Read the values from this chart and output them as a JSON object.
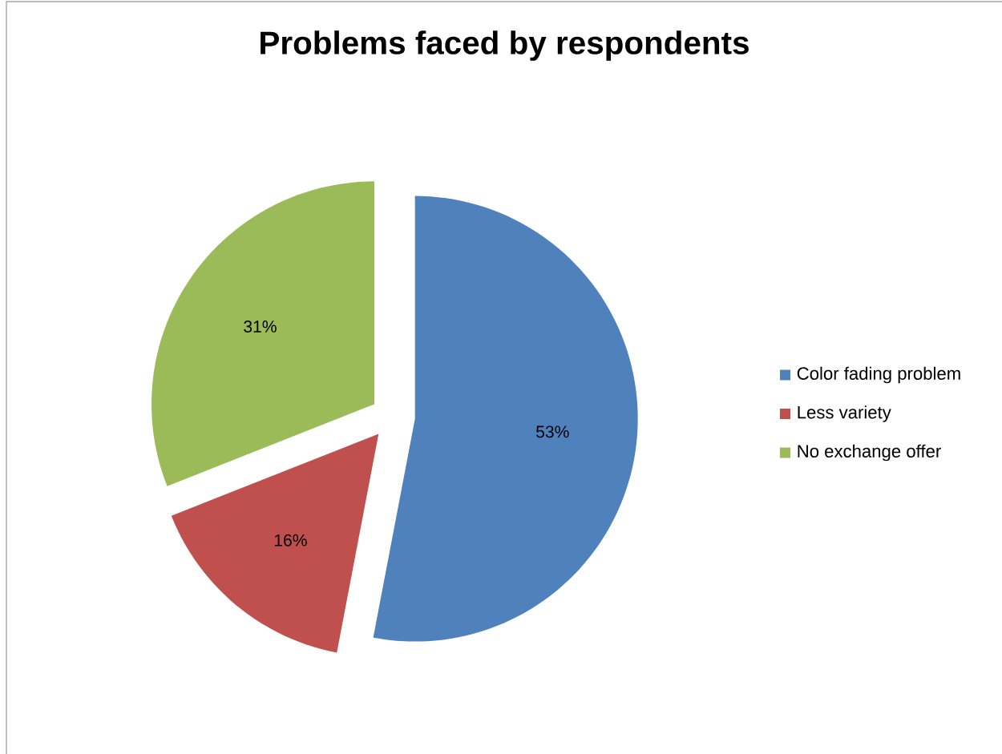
{
  "chart_data": {
    "type": "pie",
    "title": "Problems faced by respondents",
    "categories": [
      "Color fading problem",
      "Less variety",
      "No exchange offer"
    ],
    "values": [
      53,
      16,
      31
    ],
    "colors": [
      "#4f81bd",
      "#c0504d",
      "#9bbb59"
    ],
    "value_labels": [
      "53%",
      "16%",
      "31%"
    ],
    "legend": "right"
  }
}
